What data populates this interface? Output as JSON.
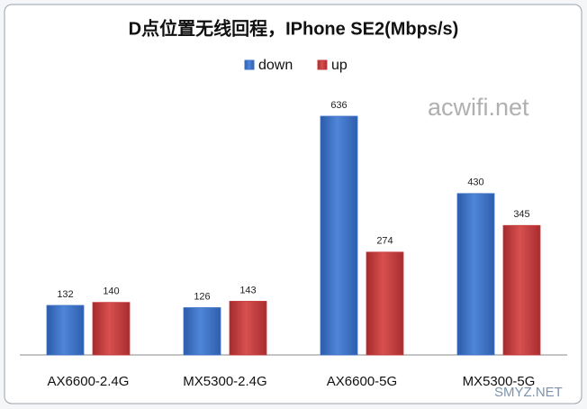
{
  "chart_data": {
    "type": "bar",
    "title": "D点位置无线回程，IPhone SE2(Mbps/s)",
    "categories": [
      "AX6600-2.4G",
      "MX5300-2.4G",
      "AX6600-5G",
      "MX5300-5G"
    ],
    "series": [
      {
        "name": "down",
        "color": "#3d72c8",
        "values": [
          132,
          126,
          636,
          430
        ]
      },
      {
        "name": "up",
        "color": "#c93a3a",
        "values": [
          140,
          143,
          274,
          345
        ]
      }
    ],
    "legend": "top",
    "annotations": [
      "acwifi.net",
      "SMYZ.NET"
    ]
  }
}
